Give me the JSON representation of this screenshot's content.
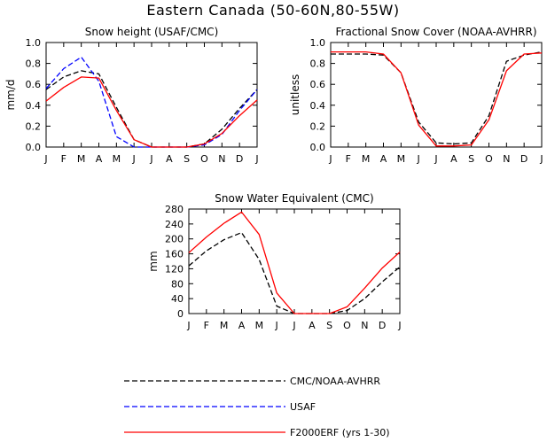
{
  "figure_title": "Eastern Canada (50-60N,80-55W)",
  "colors": {
    "obs": "#000000",
    "usaf": "#0000ff",
    "model": "#ff0000"
  },
  "legend": [
    {
      "label": "CMC/NOAA-AVHRR",
      "series": "obs"
    },
    {
      "label": "USAF",
      "series": "usaf"
    },
    {
      "label": "F2000ERF (yrs 1-30)",
      "series": "model"
    }
  ],
  "chart_data": [
    {
      "type": "line",
      "title": "Snow height (USAF/CMC)",
      "ylabel": "mm/d",
      "ylim": [
        0,
        1.0
      ],
      "yticks": [
        "0.0",
        "0.2",
        "0.4",
        "0.6",
        "0.8",
        "1.0"
      ],
      "categories": [
        "J",
        "F",
        "M",
        "A",
        "M",
        "J",
        "J",
        "A",
        "S",
        "O",
        "N",
        "D",
        "J"
      ],
      "series": [
        {
          "name": "CMC/NOAA-AVHRR",
          "key": "obs",
          "dash": "dash",
          "values": [
            0.55,
            0.67,
            0.73,
            0.7,
            0.38,
            0.07,
            0.0,
            0.0,
            0.0,
            0.03,
            0.17,
            0.37,
            0.55
          ]
        },
        {
          "name": "USAF",
          "key": "usaf",
          "dash": "dash",
          "values": [
            0.56,
            0.75,
            0.86,
            0.63,
            0.1,
            0.0,
            0.0,
            0.0,
            0.0,
            0.02,
            0.12,
            0.35,
            0.55
          ]
        },
        {
          "name": "F2000ERF (yrs 1-30)",
          "key": "model",
          "dash": "solid",
          "values": [
            0.44,
            0.57,
            0.67,
            0.66,
            0.35,
            0.07,
            0.0,
            0.0,
            0.0,
            0.03,
            0.13,
            0.3,
            0.45
          ]
        }
      ]
    },
    {
      "type": "line",
      "title": "Fractional Snow Cover (NOAA-AVHRR)",
      "ylabel": "unitless",
      "ylim": [
        0,
        1.0
      ],
      "yticks": [
        "0.0",
        "0.2",
        "0.4",
        "0.6",
        "0.8",
        "1.0"
      ],
      "categories": [
        "J",
        "F",
        "M",
        "A",
        "M",
        "J",
        "J",
        "A",
        "S",
        "O",
        "N",
        "D",
        "J"
      ],
      "series": [
        {
          "name": "CMC/NOAA-AVHRR",
          "key": "obs",
          "dash": "dash",
          "values": [
            0.89,
            0.89,
            0.89,
            0.88,
            0.71,
            0.24,
            0.04,
            0.03,
            0.04,
            0.3,
            0.82,
            0.88,
            0.91
          ]
        },
        {
          "name": "F2000ERF (yrs 1-30)",
          "key": "model",
          "dash": "solid",
          "values": [
            0.91,
            0.91,
            0.91,
            0.89,
            0.71,
            0.21,
            0.01,
            0.01,
            0.02,
            0.26,
            0.73,
            0.89,
            0.9
          ]
        }
      ]
    },
    {
      "type": "line",
      "title": "Snow Water Equivalent (CMC)",
      "ylabel": "mm",
      "ylim": [
        0,
        280
      ],
      "yticks": [
        "0",
        "40",
        "80",
        "120",
        "160",
        "200",
        "240",
        "280"
      ],
      "categories": [
        "J",
        "F",
        "M",
        "A",
        "M",
        "J",
        "J",
        "A",
        "S",
        "O",
        "N",
        "D",
        "J"
      ],
      "series": [
        {
          "name": "CMC/NOAA-AVHRR",
          "key": "obs",
          "dash": "dash",
          "values": [
            128,
            168,
            198,
            217,
            145,
            20,
            0,
            0,
            0,
            8,
            40,
            85,
            125
          ]
        },
        {
          "name": "F2000ERF (yrs 1-30)",
          "key": "model",
          "dash": "solid",
          "values": [
            163,
            205,
            242,
            272,
            212,
            55,
            0,
            0,
            0,
            18,
            68,
            122,
            165
          ]
        }
      ]
    }
  ]
}
